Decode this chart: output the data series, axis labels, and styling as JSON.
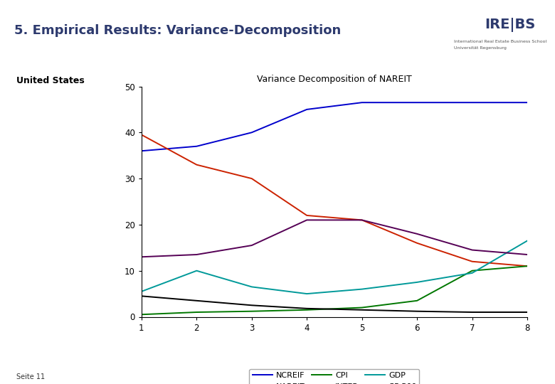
{
  "title_slide": "5. Empirical Results: Variance-Decomposition",
  "subtitle": "United States",
  "chart_title": "Variance Decomposition of NAREIT",
  "x": [
    1,
    2,
    3,
    4,
    5,
    6,
    7,
    8
  ],
  "NCREIF": [
    36,
    37,
    40,
    45,
    46.5,
    46.5,
    46.5,
    46.5
  ],
  "NAREIT": [
    39.5,
    33,
    30,
    22,
    21,
    16,
    12,
    11
  ],
  "CPI": [
    0.5,
    1.0,
    1.2,
    1.5,
    2.0,
    3.5,
    10.0,
    11.0
  ],
  "INTER": [
    4.5,
    3.5,
    2.5,
    1.8,
    1.5,
    1.2,
    1.0,
    1.0
  ],
  "GDP": [
    5.5,
    10.0,
    6.5,
    5.0,
    6.0,
    7.5,
    9.5,
    16.5
  ],
  "SP500": [
    13.0,
    13.5,
    15.5,
    21.0,
    21.0,
    18.0,
    14.5,
    13.5
  ],
  "colors": {
    "NCREIF": "#0000cc",
    "NAREIT": "#cc2200",
    "CPI": "#007700",
    "INTER": "#000000",
    "GDP": "#009999",
    "SP500": "#550055"
  },
  "xlim": [
    1,
    8
  ],
  "ylim": [
    0,
    50
  ],
  "yticks": [
    0,
    10,
    20,
    30,
    40,
    50
  ],
  "xticks": [
    1,
    2,
    3,
    4,
    5,
    6,
    7,
    8
  ],
  "header_color": "#2d3a6e",
  "separator_color": "#808080",
  "bg_color": "#ffffff",
  "footer_text": "Seite 11",
  "footer_bg": "#b0b0b0"
}
